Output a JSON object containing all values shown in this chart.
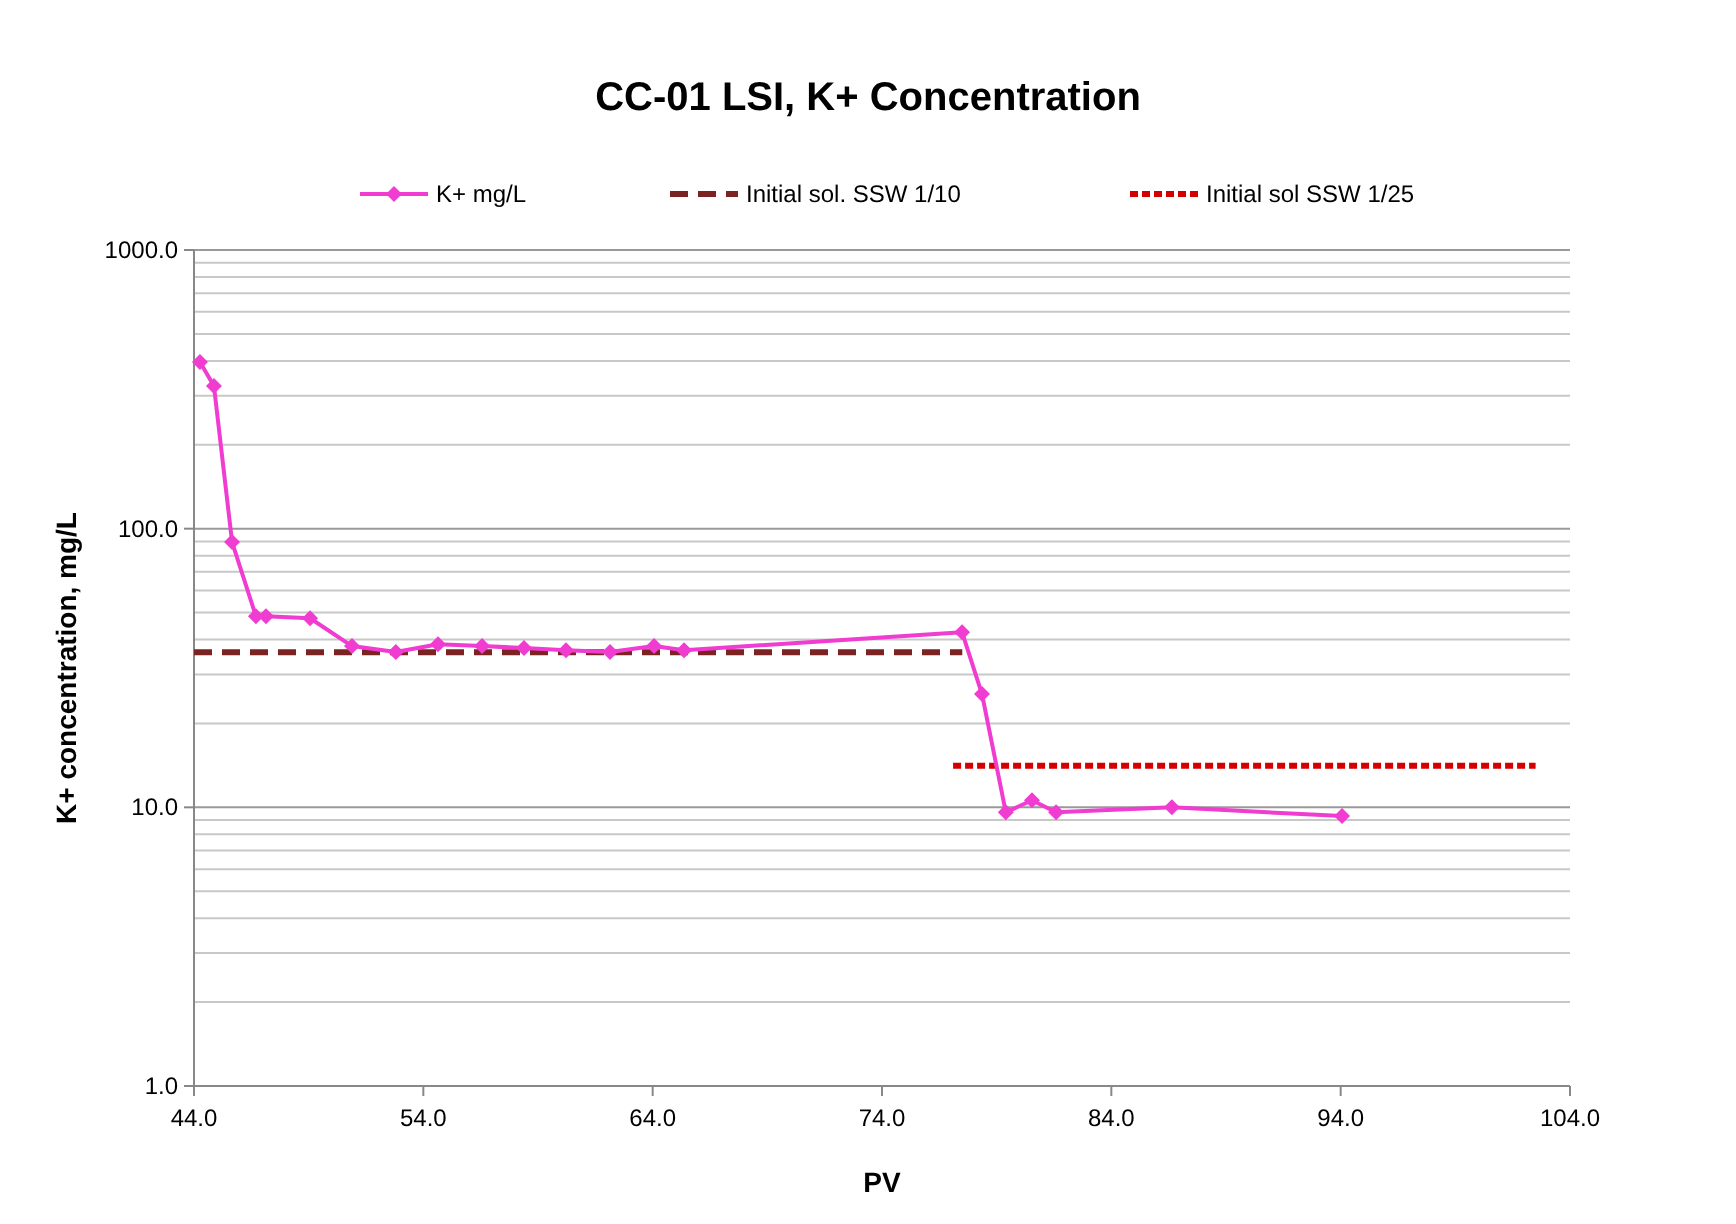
{
  "chart_data": {
    "type": "line",
    "title": "CC-01 LSI, K+ Concentration",
    "xlabel": "PV",
    "ylabel": "K+ concentration, mg/L",
    "log": "y",
    "grid": "y",
    "legend": "top",
    "xlim": [
      44,
      104
    ],
    "xticks": [
      {
        "value": 44,
        "label": "44.0"
      },
      {
        "value": 54,
        "label": "54.0"
      },
      {
        "value": 64,
        "label": "64.0"
      },
      {
        "value": 74,
        "label": "74.0"
      },
      {
        "value": 84,
        "label": "84.0"
      },
      {
        "value": 94,
        "label": "94.0"
      },
      {
        "value": 104,
        "label": "104.0"
      }
    ],
    "ylim": [
      1,
      1000
    ],
    "yticks": [
      {
        "value": 1,
        "label": "1.0"
      },
      {
        "value": 10,
        "label": "10.0"
      },
      {
        "value": 100,
        "label": "100.0"
      },
      {
        "value": 1000,
        "label": "1000.0"
      }
    ],
    "series": [
      {
        "name": "K+ mg/L",
        "color": "#f03cd0",
        "marker": "diamond",
        "line_style": "solid",
        "x": [
          44.26,
          44.87,
          45.66,
          46.7,
          47.14,
          49.06,
          50.89,
          52.8,
          54.64,
          56.56,
          58.39,
          60.22,
          62.14,
          64.06,
          65.37,
          77.49,
          78.36,
          79.4,
          80.54,
          81.59,
          86.64,
          94.06
        ],
        "values": [
          396,
          325,
          89.5,
          48.5,
          48.5,
          47.7,
          37.9,
          36.1,
          38.5,
          37.9,
          37.3,
          36.6,
          36.1,
          37.9,
          36.6,
          42.5,
          25.5,
          9.6,
          10.6,
          9.6,
          10,
          9.3
        ]
      },
      {
        "name": "Initial sol. SSW 1/10",
        "color": "#7b2323",
        "marker": "none",
        "line_style": "dashed",
        "x": [
          44,
          77.5
        ],
        "values": [
          36,
          36
        ]
      },
      {
        "name": "Initial sol SSW 1/25",
        "color": "#d40000",
        "marker": "none",
        "line_style": "dotted",
        "x": [
          77.1,
          102.5
        ],
        "values": [
          14.1,
          14.1
        ]
      }
    ]
  }
}
